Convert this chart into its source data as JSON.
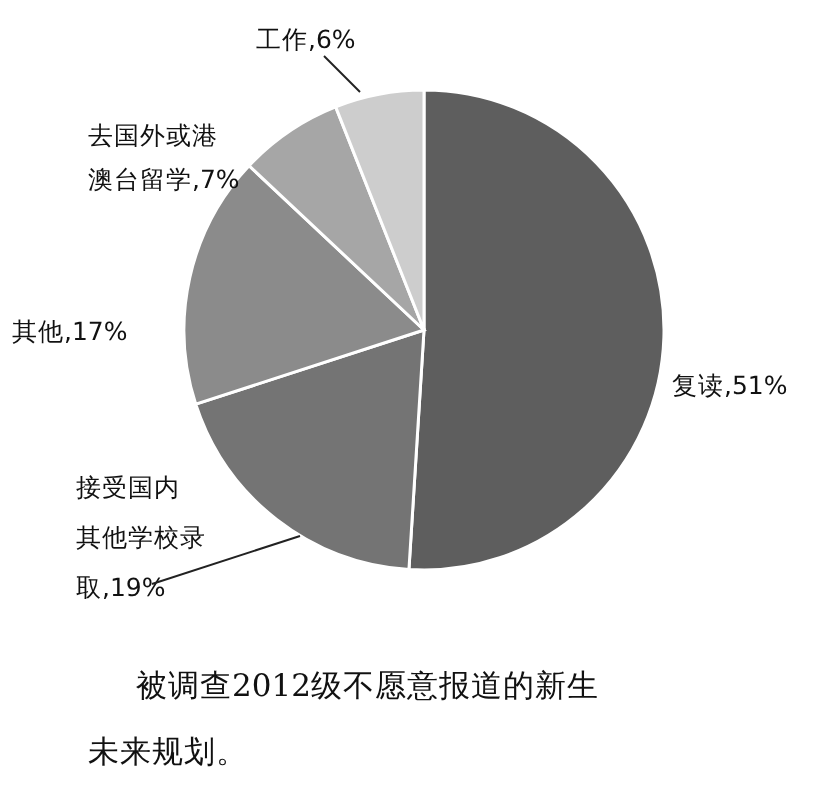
{
  "chart_data": {
    "type": "pie",
    "categories": [
      "复读",
      "接受国内其他学校录取",
      "其他",
      "去国外或港澳台留学",
      "工作"
    ],
    "values": [
      51,
      19,
      17,
      7,
      6
    ],
    "value_labels": [
      "51%",
      "19%",
      "17%",
      "7%",
      "6%"
    ],
    "colors": [
      "#5e5e5e",
      "#747474",
      "#8b8b8b",
      "#a6a6a6",
      "#cdcdcd"
    ],
    "annotations": [
      "被调查2012级不愿意报道的新生未来规划。"
    ]
  }
}
